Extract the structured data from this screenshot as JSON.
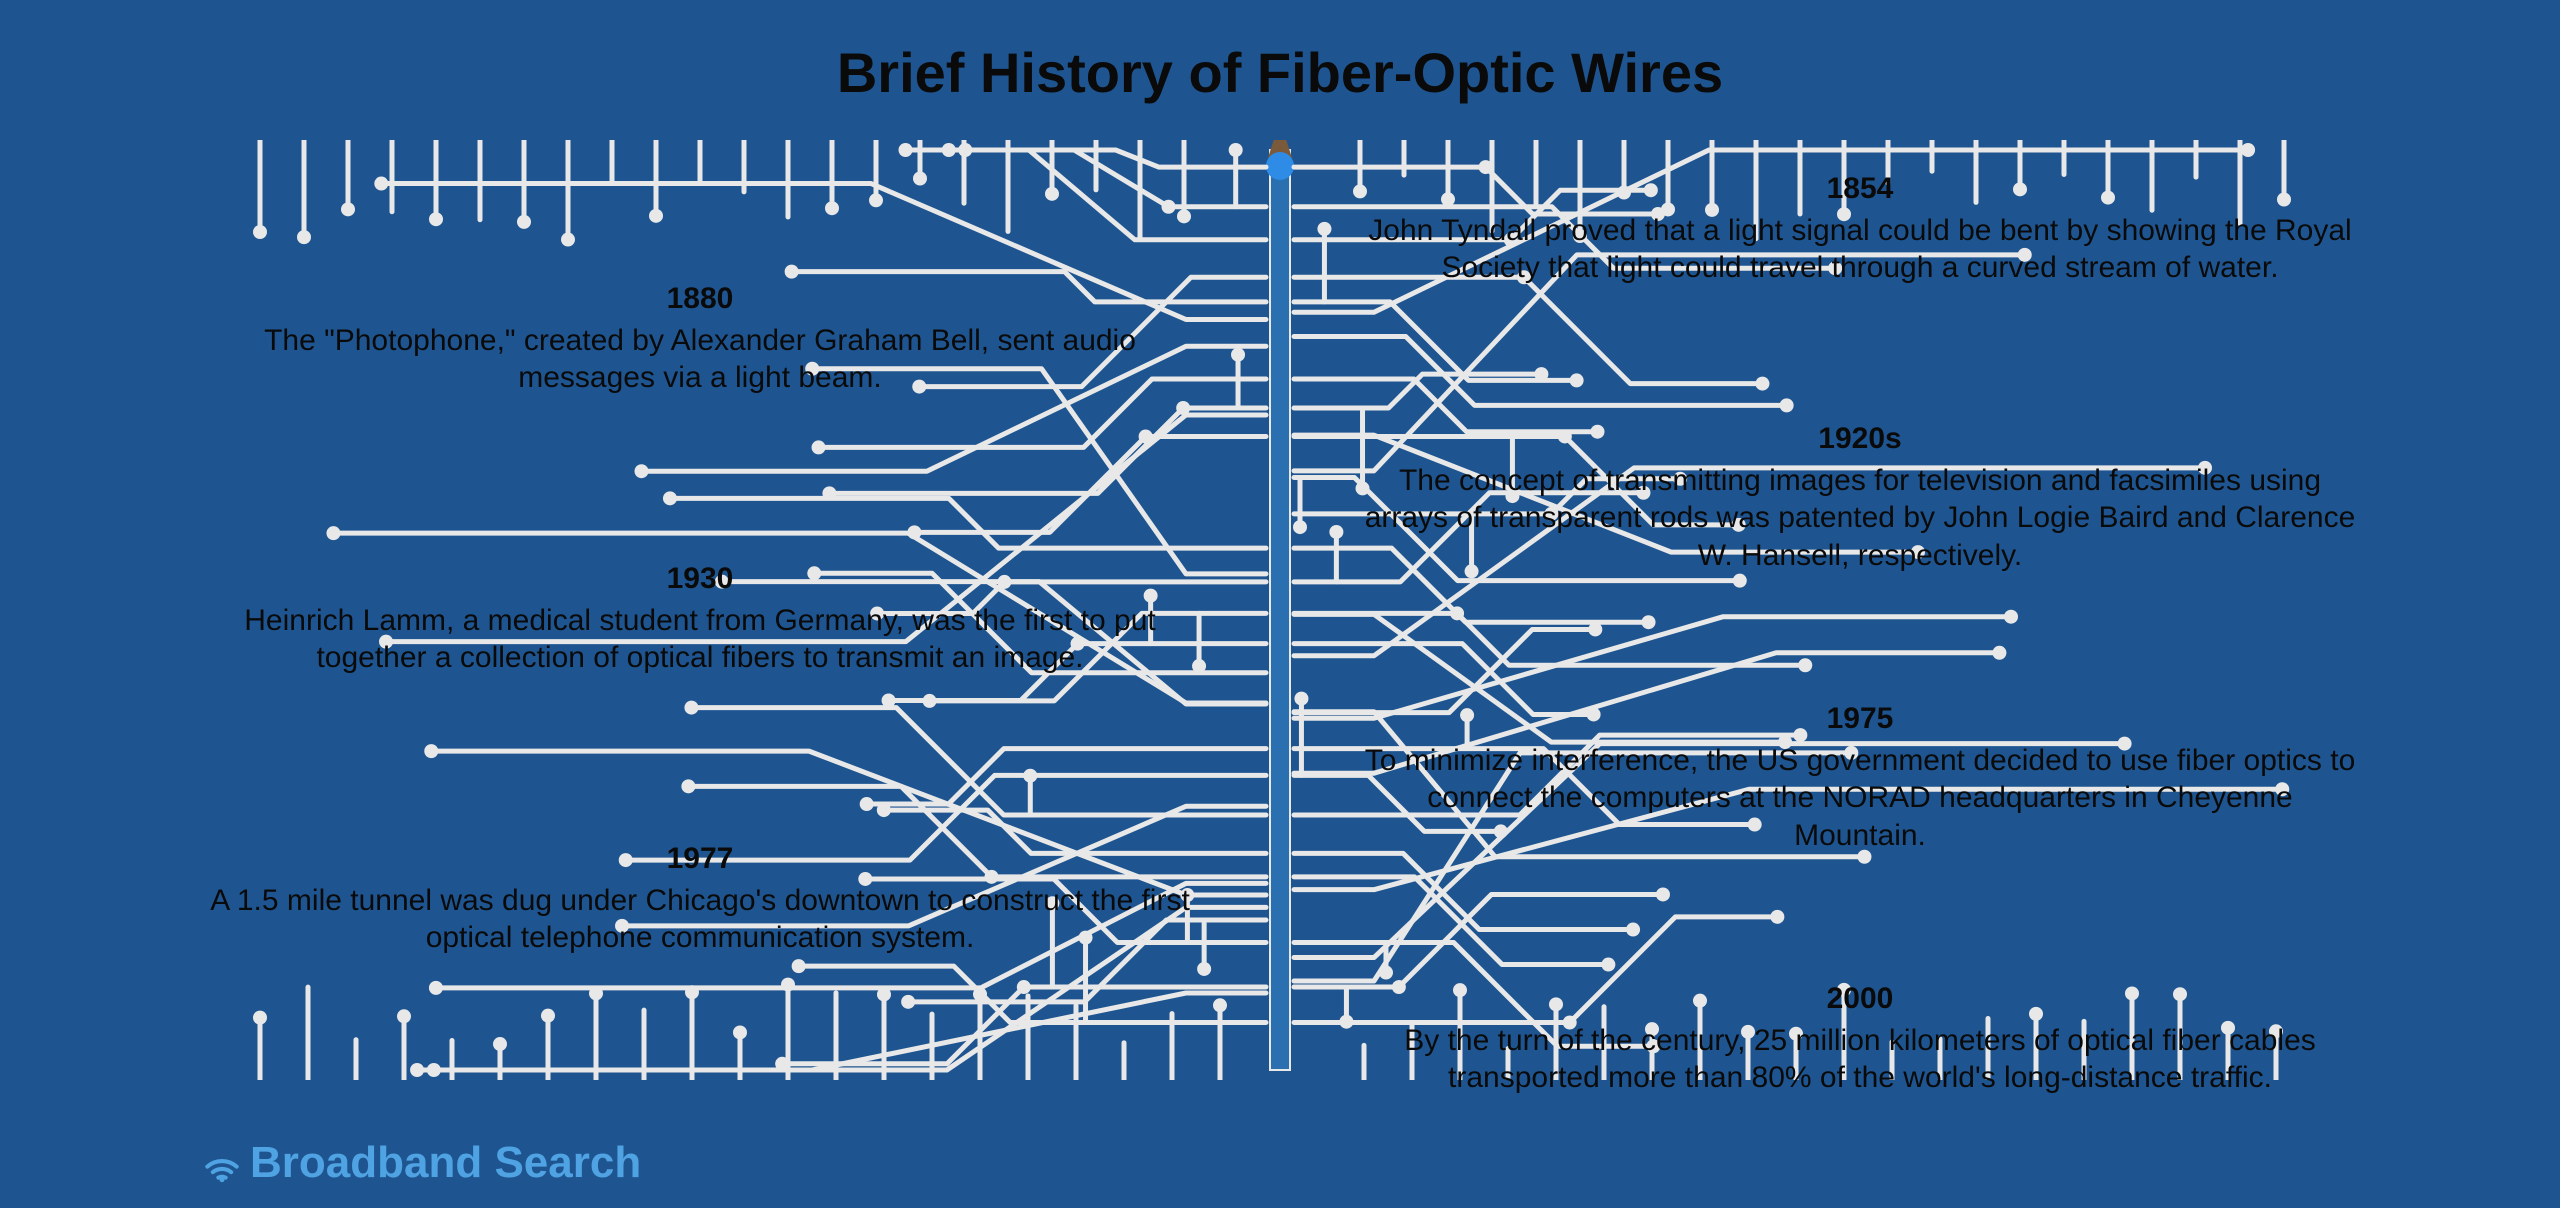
{
  "title": "Brief History of Fiber-Optic Wires",
  "background_color": "#1e5591",
  "circuit_color": "#e8e8e8",
  "text_color": "#0a0a0a",
  "logo": {
    "text": "Broadband Search",
    "color": "#4fa3e3"
  },
  "timeline": [
    {
      "side": "right",
      "pos": "e0",
      "year": "1854",
      "text": "John Tyndall proved that a light signal could be bent by showing the Royal Society that light could travel through a curved stream of water."
    },
    {
      "side": "left",
      "pos": "e1",
      "year": "1880",
      "text": "The \"Photophone,\" created by Alexander Graham Bell, sent audio messages via a light beam."
    },
    {
      "side": "right",
      "pos": "e2",
      "year": "1920s",
      "text": "The concept of transmitting images for television and facsimiles using arrays of transparent rods was patented by John Logie Baird and Clarence W. Hansell, respectively."
    },
    {
      "side": "left",
      "pos": "e3",
      "year": "1930",
      "text": "Heinrich Lamm, a medical student from Germany, was the first to put together a collection of optical fibers to transmit an image."
    },
    {
      "side": "right",
      "pos": "e4",
      "year": "1975",
      "text": "To minimize interference, the US government decided to use fiber optics to connect the computers at the NORAD headquarters in Cheyenne Mountain."
    },
    {
      "side": "left",
      "pos": "e5",
      "year": "1977",
      "text": "A 1.5 mile tunnel was dug under Chicago's downtown to construct the first optical telephone communication system."
    },
    {
      "side": "right",
      "pos": "e6",
      "year": "2000",
      "text": "By the turn of the century, 25 million kilometers of optical fiber cables transported more than 80% of the world's long-distance traffic."
    }
  ]
}
